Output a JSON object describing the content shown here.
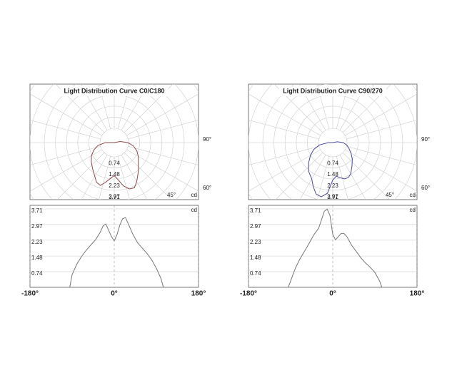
{
  "chart_data": [
    {
      "type": "polar",
      "title": "Light Distribution Curve   C0/C180",
      "unit": "cd",
      "color": "#8a4a4a",
      "x": [
        -180,
        -120,
        -95,
        -90,
        -80,
        -70,
        -60,
        -50,
        -40,
        -30,
        -24,
        -18,
        -12,
        -6,
        0,
        6,
        12,
        18,
        24,
        30,
        40,
        50,
        60,
        70,
        80,
        90,
        100,
        105,
        120,
        180
      ],
      "values": [
        0,
        0,
        0,
        0.6,
        1.1,
        1.45,
        1.75,
        2.0,
        2.25,
        2.6,
        2.9,
        3.0,
        2.7,
        2.4,
        2.2,
        2.5,
        2.95,
        3.25,
        3.3,
        3.0,
        2.5,
        2.1,
        1.85,
        1.6,
        1.3,
        0.9,
        0.4,
        0,
        0,
        0
      ],
      "xlim": [
        -180,
        180
      ],
      "xticks": [
        {
          "value": -180,
          "label": "-180°"
        },
        {
          "value": 0,
          "label": "0°"
        },
        {
          "value": 180,
          "label": "180°"
        }
      ],
      "ylim": [
        0,
        3.71
      ],
      "yticks": [
        0.74,
        1.48,
        2.23,
        2.97,
        3.71
      ],
      "polar_angle_labels": [
        {
          "value": 90,
          "label": "90°"
        },
        {
          "value": 60,
          "label": "60°"
        },
        {
          "value": 45,
          "label": "45°"
        }
      ]
    },
    {
      "type": "polar",
      "title": "Light Distribution Curve   C90/270",
      "unit": "cd",
      "color": "#4a4a9a",
      "x": [
        -180,
        -120,
        -95,
        -90,
        -80,
        -70,
        -60,
        -50,
        -40,
        -30,
        -24,
        -18,
        -12,
        -6,
        0,
        6,
        12,
        18,
        24,
        30,
        40,
        50,
        60,
        70,
        80,
        90,
        100,
        105,
        120,
        180
      ],
      "values": [
        0,
        0,
        0,
        0.3,
        0.9,
        1.35,
        1.72,
        2.1,
        2.5,
        2.8,
        3.2,
        3.6,
        3.7,
        3.4,
        2.5,
        2.25,
        2.4,
        2.55,
        2.55,
        2.4,
        2.0,
        1.7,
        1.4,
        1.15,
        0.95,
        0.7,
        0.3,
        0,
        0,
        0
      ],
      "xlim": [
        -180,
        180
      ],
      "xticks": [
        {
          "value": -180,
          "label": "-180°"
        },
        {
          "value": 0,
          "label": "0°"
        },
        {
          "value": 180,
          "label": "180°"
        }
      ],
      "ylim": [
        0,
        3.71
      ],
      "yticks": [
        0.74,
        1.48,
        2.23,
        2.97,
        3.71
      ],
      "polar_angle_labels": [
        {
          "value": 90,
          "label": "90°"
        },
        {
          "value": 60,
          "label": "60°"
        },
        {
          "value": 45,
          "label": "45°"
        }
      ]
    }
  ]
}
